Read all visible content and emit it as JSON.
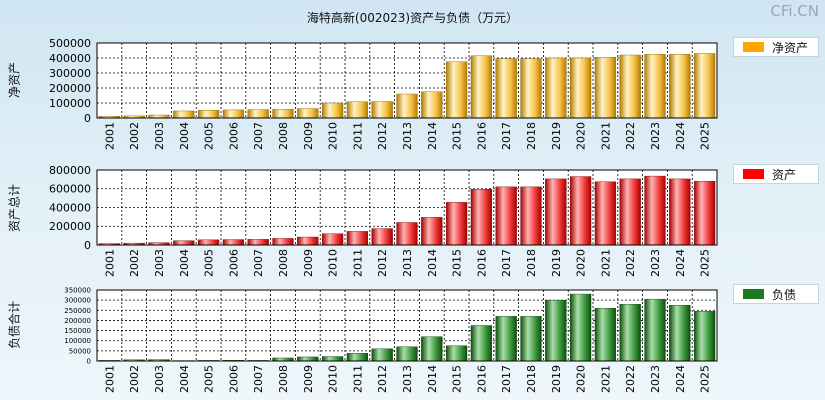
{
  "title": "海特高新(002023)资产与负债（万元）",
  "watermark": "CFi.CN",
  "colors": {
    "net_assets": "#f2a900",
    "assets": "#ff0000",
    "liabilities": "#1e7a1e"
  },
  "chart_data": [
    {
      "type": "bar",
      "ylabel": "净资产",
      "legend": "净资产",
      "legend_position": "right",
      "grid": true,
      "ylim": [
        0,
        500000
      ],
      "yticks": [
        0,
        100000,
        200000,
        300000,
        400000,
        500000
      ],
      "categories": [
        "2001",
        "2002",
        "2003",
        "2004",
        "2005",
        "2006",
        "2007",
        "2008",
        "2009",
        "2010",
        "2011",
        "2012",
        "2013",
        "2014",
        "2015",
        "2016",
        "2017",
        "2018",
        "2019",
        "2020",
        "2021",
        "2022",
        "2023",
        "2024",
        "2025"
      ],
      "values": [
        12000,
        14000,
        20000,
        47000,
        52000,
        54000,
        56000,
        58000,
        63000,
        100000,
        108000,
        110000,
        160000,
        175000,
        375000,
        415000,
        395000,
        395000,
        400000,
        400000,
        405000,
        420000,
        425000,
        425000,
        430000
      ]
    },
    {
      "type": "bar",
      "ylabel": "资产总计",
      "legend": "资产",
      "legend_position": "right",
      "grid": true,
      "ylim": [
        0,
        800000
      ],
      "yticks": [
        0,
        200000,
        400000,
        600000,
        800000
      ],
      "categories": [
        "2001",
        "2002",
        "2003",
        "2004",
        "2005",
        "2006",
        "2007",
        "2008",
        "2009",
        "2010",
        "2011",
        "2012",
        "2013",
        "2014",
        "2015",
        "2016",
        "2017",
        "2018",
        "2019",
        "2020",
        "2021",
        "2022",
        "2023",
        "2024",
        "2025"
      ],
      "values": [
        15000,
        20000,
        25000,
        45000,
        55000,
        58000,
        60000,
        70000,
        85000,
        120000,
        145000,
        175000,
        240000,
        295000,
        455000,
        595000,
        620000,
        620000,
        705000,
        730000,
        675000,
        705000,
        735000,
        705000,
        680000
      ]
    },
    {
      "type": "bar",
      "ylabel": "负债合计",
      "legend": "负债",
      "legend_position": "right",
      "grid": true,
      "ylim": [
        0,
        350000
      ],
      "yticks": [
        0,
        50000,
        100000,
        150000,
        200000,
        250000,
        300000,
        350000
      ],
      "categories": [
        "2001",
        "2002",
        "2003",
        "2004",
        "2005",
        "2006",
        "2007",
        "2008",
        "2009",
        "2010",
        "2011",
        "2012",
        "2013",
        "2014",
        "2015",
        "2016",
        "2017",
        "2018",
        "2019",
        "2020",
        "2021",
        "2022",
        "2023",
        "2024",
        "2025"
      ],
      "values": [
        3000,
        6000,
        7000,
        2000,
        3000,
        4000,
        3000,
        15000,
        20000,
        22000,
        38000,
        60000,
        70000,
        120000,
        75000,
        175000,
        220000,
        220000,
        300000,
        330000,
        260000,
        280000,
        305000,
        275000,
        245000
      ]
    }
  ]
}
